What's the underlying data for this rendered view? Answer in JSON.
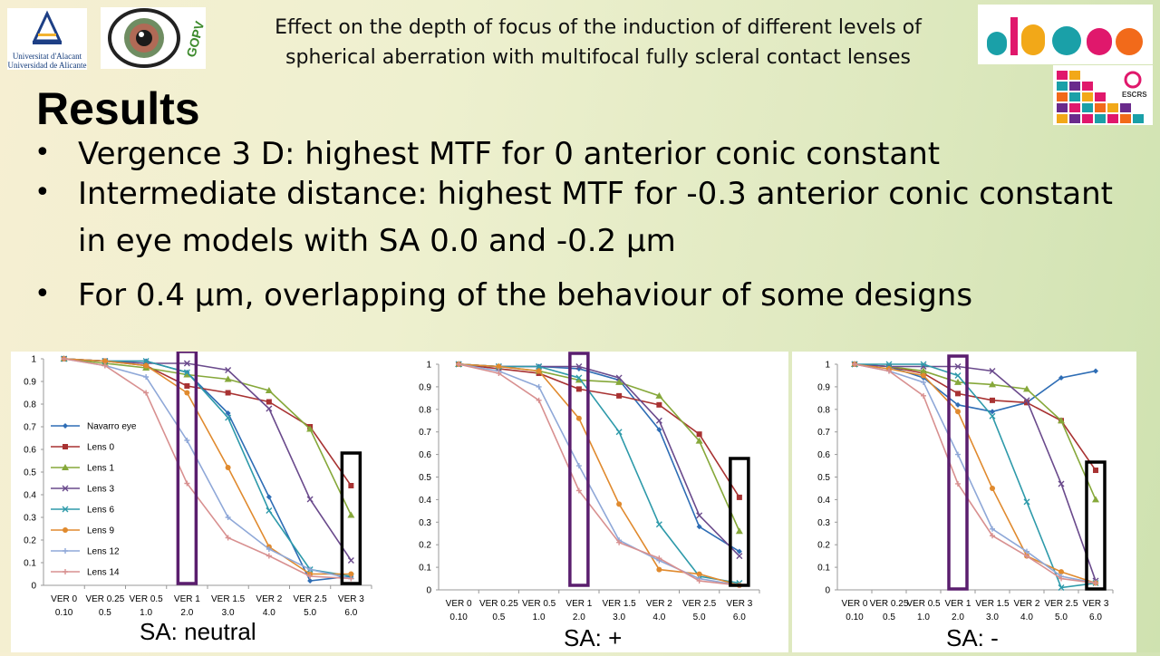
{
  "header": {
    "title_line1": "Effect on the depth of focus of the induction of different levels of",
    "title_line2": "spherical aberration with multifocal fully scleral contact lenses"
  },
  "logos": {
    "ua_line1": "Universitat d'Alacant",
    "ua_line2": "Universidad de Alicante",
    "escrs": "ESCRS",
    "gopv": "GOPV"
  },
  "results": {
    "heading": "Results",
    "bullets": [
      {
        "line1": "Vergence 3 D: highest MTF for 0 anterior conic constant",
        "line2": ""
      },
      {
        "line1": "Intermediate distance: highest MTF for -0.3 anterior conic constant",
        "line2": "in eye models with SA 0.0 and -0.2 μm"
      },
      {
        "line1": "For 0.4 μm, overlapping of the behaviour of some designs",
        "line2": ""
      }
    ]
  },
  "chart_data": [
    {
      "type": "line",
      "caption": "SA: neutral",
      "categories": [
        [
          "VER 0",
          "0.10"
        ],
        [
          "VER 0.25",
          "0.5"
        ],
        [
          "VER 0.5",
          "1.0"
        ],
        [
          "VER 1",
          "2.0"
        ],
        [
          "VER 1.5",
          "3.0"
        ],
        [
          "VER 2",
          "4.0"
        ],
        [
          "VER 2.5",
          "5.0"
        ],
        [
          "VER 3",
          "6.0"
        ]
      ],
      "ylim": [
        0,
        1
      ],
      "yticks": [
        "0",
        "0.1",
        "0.2",
        "0.3",
        "0.4",
        "0.5",
        "0.6",
        "0.7",
        "0.8",
        "0.9",
        "1"
      ],
      "legend_position": "left",
      "highlight_columns": [
        3,
        7
      ],
      "series": [
        {
          "name": "Navarro eye",
          "color": "#2e6db5",
          "marker": "diamond",
          "values": [
            1.0,
            0.99,
            0.99,
            0.94,
            0.76,
            0.39,
            0.02,
            0.04
          ]
        },
        {
          "name": "Lens 0",
          "color": "#a83232",
          "marker": "square",
          "values": [
            1.0,
            0.99,
            0.97,
            0.88,
            0.85,
            0.81,
            0.7,
            0.44
          ]
        },
        {
          "name": "Lens 1",
          "color": "#86a83a",
          "marker": "triangle",
          "values": [
            1.0,
            0.98,
            0.96,
            0.93,
            0.91,
            0.86,
            0.69,
            0.31
          ]
        },
        {
          "name": "Lens 3",
          "color": "#6a4a8c",
          "marker": "x",
          "values": [
            1.0,
            0.99,
            0.98,
            0.98,
            0.95,
            0.78,
            0.38,
            0.11
          ]
        },
        {
          "name": "Lens 6",
          "color": "#2e9aaa",
          "marker": "x",
          "values": [
            1.0,
            0.99,
            0.99,
            0.94,
            0.74,
            0.33,
            0.07,
            0.04
          ]
        },
        {
          "name": "Lens 9",
          "color": "#e08a2e",
          "marker": "circle",
          "values": [
            1.0,
            0.99,
            0.97,
            0.85,
            0.52,
            0.17,
            0.05,
            0.05
          ]
        },
        {
          "name": "Lens 12",
          "color": "#8fa8d8",
          "marker": "plus",
          "values": [
            1.0,
            0.97,
            0.92,
            0.64,
            0.3,
            0.16,
            0.07,
            0.03
          ]
        },
        {
          "name": "Lens 14",
          "color": "#d89090",
          "marker": "plus",
          "values": [
            1.0,
            0.97,
            0.85,
            0.45,
            0.21,
            0.13,
            0.04,
            0.03
          ]
        }
      ]
    },
    {
      "type": "line",
      "caption": "SA: +",
      "categories": [
        [
          "VER 0",
          "0.10"
        ],
        [
          "VER 0.25",
          "0.5"
        ],
        [
          "VER 0.5",
          "1.0"
        ],
        [
          "VER 1",
          "2.0"
        ],
        [
          "VER 1.5",
          "3.0"
        ],
        [
          "VER 2",
          "4.0"
        ],
        [
          "VER 2.5",
          "5.0"
        ],
        [
          "VER 3",
          "6.0"
        ]
      ],
      "ylim": [
        0,
        1
      ],
      "yticks": [
        "0",
        "0.1",
        "0.2",
        "0.3",
        "0.4",
        "0.5",
        "0.6",
        "0.7",
        "0.8",
        "0.9",
        "1"
      ],
      "highlight_columns": [
        3,
        7
      ],
      "series": [
        {
          "name": "Navarro eye",
          "color": "#2e6db5",
          "marker": "diamond",
          "values": [
            1.0,
            0.99,
            0.99,
            0.98,
            0.93,
            0.71,
            0.28,
            0.17
          ]
        },
        {
          "name": "Lens 0",
          "color": "#a83232",
          "marker": "square",
          "values": [
            1.0,
            0.98,
            0.96,
            0.89,
            0.86,
            0.82,
            0.69,
            0.41
          ]
        },
        {
          "name": "Lens 1",
          "color": "#86a83a",
          "marker": "triangle",
          "values": [
            1.0,
            0.99,
            0.97,
            0.93,
            0.92,
            0.86,
            0.66,
            0.26
          ]
        },
        {
          "name": "Lens 3",
          "color": "#6a4a8c",
          "marker": "x",
          "values": [
            1.0,
            0.99,
            0.99,
            0.99,
            0.94,
            0.75,
            0.33,
            0.15
          ]
        },
        {
          "name": "Lens 6",
          "color": "#2e9aaa",
          "marker": "x",
          "values": [
            1.0,
            0.99,
            0.99,
            0.94,
            0.7,
            0.29,
            0.06,
            0.03
          ]
        },
        {
          "name": "Lens 9",
          "color": "#e08a2e",
          "marker": "circle",
          "values": [
            1.0,
            0.99,
            0.97,
            0.76,
            0.38,
            0.09,
            0.07,
            0.02
          ]
        },
        {
          "name": "Lens 12",
          "color": "#8fa8d8",
          "marker": "plus",
          "values": [
            1.0,
            0.97,
            0.9,
            0.55,
            0.22,
            0.13,
            0.05,
            0.02
          ]
        },
        {
          "name": "Lens 14",
          "color": "#d89090",
          "marker": "plus",
          "values": [
            1.0,
            0.96,
            0.84,
            0.44,
            0.21,
            0.14,
            0.04,
            0.02
          ]
        }
      ]
    },
    {
      "type": "line",
      "caption": "SA: -",
      "categories": [
        [
          "VER 0",
          "0.10"
        ],
        [
          "VER 0.25",
          "0.5"
        ],
        [
          "VER 0.5",
          "1.0"
        ],
        [
          "VER 1",
          "2.0"
        ],
        [
          "VER 1.5",
          "3.0"
        ],
        [
          "VER 2",
          "4.0"
        ],
        [
          "VER 2.5",
          "5.0"
        ],
        [
          "VER 3",
          "6.0"
        ]
      ],
      "ylim": [
        0,
        1
      ],
      "yticks": [
        "0",
        "0.1",
        "0.2",
        "0.3",
        "0.4",
        "0.5",
        "0.6",
        "0.7",
        "0.8",
        "0.9",
        "1"
      ],
      "highlight_columns": [
        3,
        7
      ],
      "series": [
        {
          "name": "Navarro eye",
          "color": "#2e6db5",
          "marker": "diamond",
          "values": [
            1.0,
            0.99,
            0.94,
            0.82,
            0.79,
            0.83,
            0.94,
            0.97
          ]
        },
        {
          "name": "Lens 0",
          "color": "#a83232",
          "marker": "square",
          "values": [
            1.0,
            0.99,
            0.96,
            0.87,
            0.84,
            0.83,
            0.75,
            0.53
          ]
        },
        {
          "name": "Lens 1",
          "color": "#86a83a",
          "marker": "triangle",
          "values": [
            1.0,
            0.99,
            0.97,
            0.92,
            0.91,
            0.89,
            0.75,
            0.4
          ]
        },
        {
          "name": "Lens 3",
          "color": "#6a4a8c",
          "marker": "x",
          "values": [
            1.0,
            0.99,
            0.99,
            0.99,
            0.97,
            0.84,
            0.47,
            0.04
          ]
        },
        {
          "name": "Lens 6",
          "color": "#2e9aaa",
          "marker": "x",
          "values": [
            1.0,
            1.0,
            1.0,
            0.95,
            0.77,
            0.39,
            0.01,
            0.03
          ]
        },
        {
          "name": "Lens 9",
          "color": "#e08a2e",
          "marker": "circle",
          "values": [
            1.0,
            0.98,
            0.95,
            0.79,
            0.45,
            0.15,
            0.08,
            0.03
          ]
        },
        {
          "name": "Lens 12",
          "color": "#8fa8d8",
          "marker": "plus",
          "values": [
            1.0,
            0.97,
            0.92,
            0.6,
            0.27,
            0.17,
            0.06,
            0.03
          ]
        },
        {
          "name": "Lens 14",
          "color": "#d89090",
          "marker": "plus",
          "values": [
            1.0,
            0.97,
            0.86,
            0.47,
            0.24,
            0.15,
            0.05,
            0.03
          ]
        }
      ]
    }
  ]
}
